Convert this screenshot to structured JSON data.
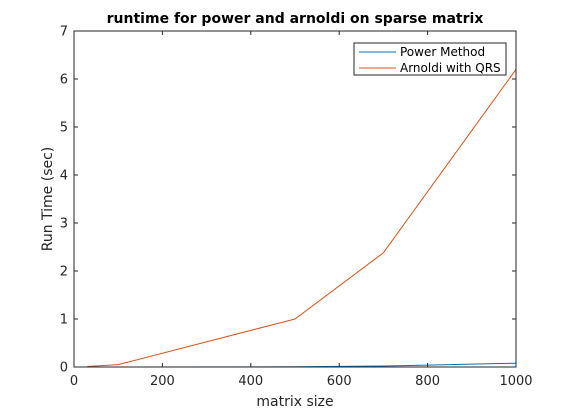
{
  "chart_data": {
    "type": "line",
    "title": "runtime for power and arnoldi on sparse matrix",
    "xlabel": "matrix size",
    "ylabel": "Run Time (sec)",
    "xlim": [
      0,
      1000
    ],
    "ylim": [
      0,
      7
    ],
    "xticks": [
      0,
      200,
      400,
      600,
      800,
      1000
    ],
    "yticks": [
      0,
      1,
      2,
      3,
      4,
      5,
      6,
      7
    ],
    "grid": false,
    "legend_position": "top-right",
    "series": [
      {
        "name": "Power Method",
        "color": "#0072BD",
        "x": [
          30,
          100,
          500,
          700,
          800,
          850,
          950,
          1000
        ],
        "y": [
          0.0,
          0.001,
          0.005,
          0.02,
          0.04,
          0.05,
          0.07,
          0.08
        ]
      },
      {
        "name": "Arnoldi with QRS",
        "color": "#D95319",
        "x": [
          30,
          100,
          500,
          700,
          1000
        ],
        "y": [
          0.01,
          0.05,
          1.0,
          2.38,
          6.2
        ]
      }
    ]
  }
}
